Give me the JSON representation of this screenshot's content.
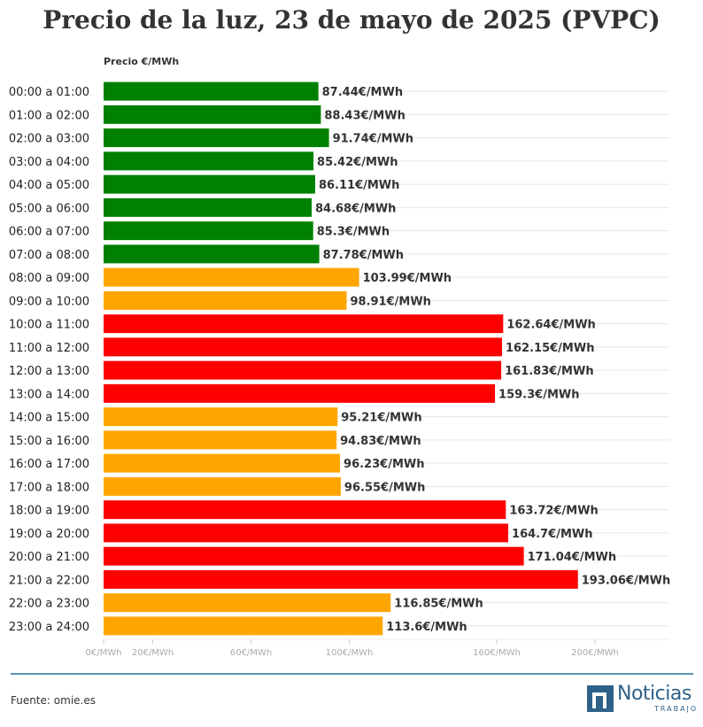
{
  "title": "Precio de la luz, 23 de mayo de 2025 (PVPC)",
  "source": "Fuente: omie.es",
  "logo": {
    "name": "Noticias",
    "sub": "TRABAJO"
  },
  "colors": {
    "low": "#008000",
    "mid": "#FFA500",
    "high": "#FF0000",
    "rule": "#5b8fb0",
    "brand": "#2e6188"
  },
  "chart_data": {
    "type": "bar",
    "orientation": "horizontal",
    "title": "Precio de la luz, 23 de mayo de 2025 (PVPC)",
    "unit_label": "Precio €/MWh",
    "value_suffix": "€/MWh",
    "categories": [
      "00:00 a 01:00",
      "01:00 a 02:00",
      "02:00 a 03:00",
      "03:00 a 04:00",
      "04:00 a 05:00",
      "05:00 a 06:00",
      "06:00 a 07:00",
      "07:00 a 08:00",
      "08:00 a 09:00",
      "09:00 a 10:00",
      "10:00 a 11:00",
      "11:00 a 12:00",
      "12:00 a 13:00",
      "13:00 a 14:00",
      "14:00 a 15:00",
      "15:00 a 16:00",
      "16:00 a 17:00",
      "17:00 a 18:00",
      "18:00 a 19:00",
      "19:00 a 20:00",
      "20:00 a 21:00",
      "21:00 a 22:00",
      "22:00 a 23:00",
      "23:00 a 24:00"
    ],
    "values": [
      87.44,
      88.43,
      91.74,
      85.42,
      86.11,
      84.68,
      85.3,
      87.78,
      103.99,
      98.91,
      162.64,
      162.15,
      161.83,
      159.3,
      95.21,
      94.83,
      96.23,
      96.55,
      163.72,
      164.7,
      171.04,
      193.06,
      116.85,
      113.6
    ],
    "levels": [
      "low",
      "low",
      "low",
      "low",
      "low",
      "low",
      "low",
      "low",
      "mid",
      "mid",
      "high",
      "high",
      "high",
      "high",
      "mid",
      "mid",
      "mid",
      "mid",
      "high",
      "high",
      "high",
      "high",
      "mid",
      "mid"
    ],
    "xlim": [
      0,
      235
    ],
    "xticks": [
      {
        "value": 0,
        "label": "0€/MWh"
      },
      {
        "value": 20,
        "label": "20€/MWh"
      },
      {
        "value": 60,
        "label": "60€/MWh"
      },
      {
        "value": 100,
        "label": "100€/MWh"
      },
      {
        "value": 160,
        "label": "160€/MWh"
      },
      {
        "value": 200,
        "label": "200€/MWh"
      }
    ],
    "grid": true
  }
}
